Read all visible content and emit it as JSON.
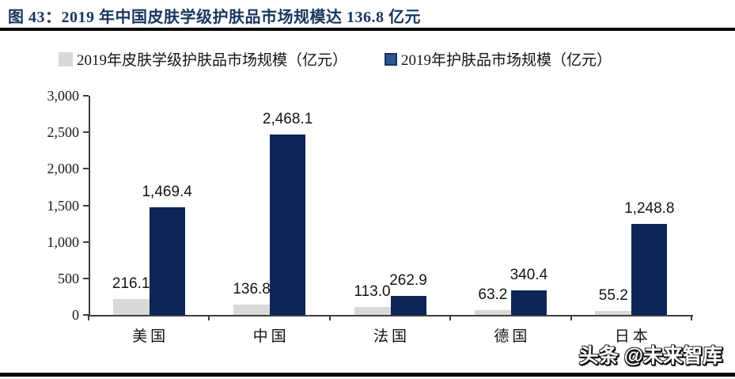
{
  "figure": {
    "title": "图 43：2019 年中国皮肤学级护肤品市场规模达 136.8 亿元",
    "watermark": "头条 @未来智库"
  },
  "colors": {
    "title_navy": "#17375E",
    "bar_gray": "#D9D9D9",
    "bar_navy": "#0E2557",
    "axis": "#3f3f3f",
    "text": "#141414",
    "divider": "#060608"
  },
  "chart_data": {
    "type": "bar",
    "title": "图 43：2019 年中国皮肤学级护肤品市场规模达 136.8 亿元",
    "categories": [
      "美国",
      "中国",
      "法国",
      "德国",
      "日本"
    ],
    "series": [
      {
        "name": "2019年皮肤学级护肤品市场规模（亿元）",
        "color": "#D9D9D9",
        "values": [
          216.1,
          136.8,
          113.0,
          63.2,
          55.2
        ],
        "labels": [
          "216.1",
          "136.8",
          "113.0",
          "63.2",
          "55.2"
        ]
      },
      {
        "name": "2019年护肤品市场规模（亿元）",
        "color": "#0E2557",
        "values": [
          1469.4,
          2468.1,
          262.9,
          340.4,
          1248.8
        ],
        "labels": [
          "1,469.4",
          "2,468.1",
          "262.9",
          "340.4",
          "1,248.8"
        ]
      }
    ],
    "xlabel": "",
    "ylabel": "",
    "ylim": [
      0,
      3000
    ],
    "yticks": [
      0,
      500,
      1000,
      1500,
      2000,
      2500,
      3000
    ],
    "ytick_labels": [
      "0",
      "500",
      "1,000",
      "1,500",
      "2,000",
      "2,500",
      "3,000"
    ],
    "legend_position": "top",
    "grid": false
  }
}
